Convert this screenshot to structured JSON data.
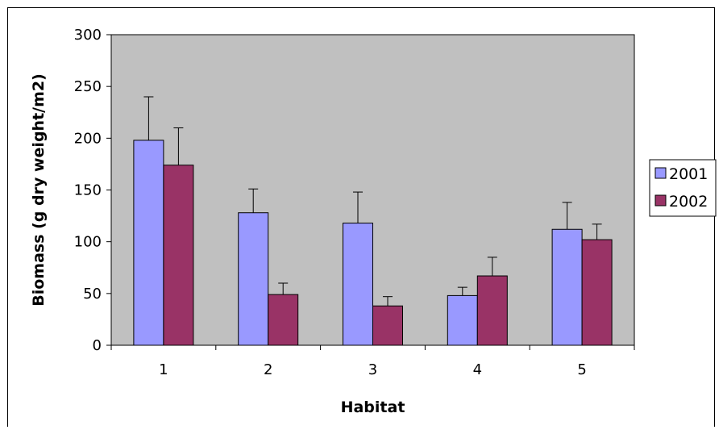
{
  "chart_data": {
    "type": "bar",
    "title": "",
    "xlabel": "Habitat",
    "ylabel": "Biomass (g dry weight/m2)",
    "categories": [
      "1",
      "2",
      "3",
      "4",
      "5"
    ],
    "ylim": [
      0,
      300
    ],
    "yticks": [
      0,
      50,
      100,
      150,
      200,
      250,
      300
    ],
    "grid": false,
    "legend_position": "right",
    "plot_background": "#c0c0c0",
    "series": [
      {
        "name": "2001",
        "color": "#9999ff",
        "values": [
          198,
          128,
          118,
          48,
          112
        ],
        "error": [
          42,
          23,
          30,
          8,
          26
        ]
      },
      {
        "name": "2002",
        "color": "#993366",
        "values": [
          174,
          49,
          38,
          67,
          102
        ],
        "error": [
          36,
          11,
          9,
          18,
          15
        ]
      }
    ]
  }
}
